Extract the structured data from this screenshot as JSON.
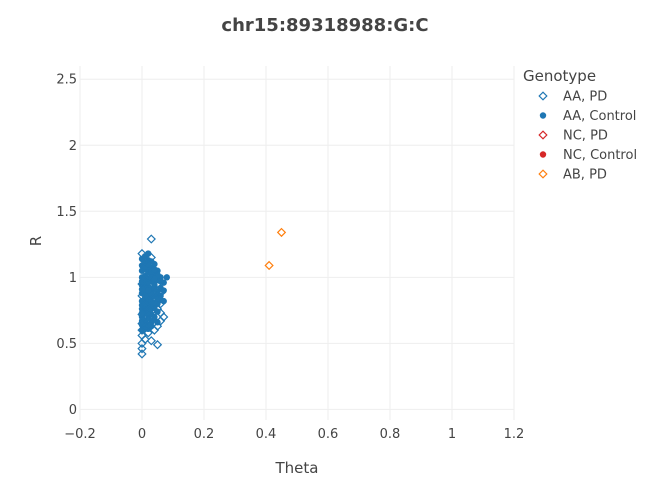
{
  "chart_data": {
    "type": "scatter",
    "title": "chr15:89318988:G:C",
    "xlabel": "Theta",
    "ylabel": "R",
    "xlim": [
      -0.2,
      1.2
    ],
    "ylim": [
      -0.08,
      2.6
    ],
    "xticks": [
      -0.2,
      0,
      0.2,
      0.4,
      0.6,
      0.8,
      1,
      1.2
    ],
    "xtick_labels": [
      "−0.2",
      "0",
      "0.2",
      "0.4",
      "0.6",
      "0.8",
      "1",
      "1.2"
    ],
    "yticks": [
      0,
      0.5,
      1,
      1.5,
      2,
      2.5
    ],
    "ytick_labels": [
      "0",
      "0.5",
      "1",
      "1.5",
      "2",
      "2.5"
    ],
    "grid": true,
    "legend": {
      "title": "Genotype",
      "position": "top-right"
    },
    "series": [
      {
        "name": "AA, PD",
        "marker": "diamond-open",
        "color": "#1f77b4",
        "points": [
          [
            0.03,
            1.29
          ],
          [
            0.0,
            0.42
          ],
          [
            0.0,
            0.46
          ],
          [
            0.0,
            0.5
          ],
          [
            0.01,
            0.53
          ],
          [
            0.0,
            0.56
          ],
          [
            0.02,
            0.58
          ],
          [
            0.05,
            0.49
          ],
          [
            0.03,
            0.52
          ],
          [
            0.0,
            0.6
          ],
          [
            0.01,
            0.62
          ],
          [
            0.04,
            0.6
          ],
          [
            0.05,
            0.63
          ],
          [
            0.06,
            0.67
          ],
          [
            0.07,
            0.7
          ],
          [
            0.06,
            0.73
          ],
          [
            0.0,
            0.65
          ],
          [
            0.02,
            0.68
          ],
          [
            0.03,
            0.7
          ],
          [
            0.05,
            0.76
          ],
          [
            0.06,
            0.8
          ],
          [
            0.0,
            0.72
          ],
          [
            0.04,
            0.85
          ],
          [
            0.05,
            0.9
          ],
          [
            0.0,
            0.95
          ],
          [
            0.02,
            1.0
          ],
          [
            0.04,
            1.05
          ],
          [
            0.01,
            1.12
          ],
          [
            0.03,
            1.15
          ],
          [
            0.0,
            1.18
          ],
          [
            0.05,
            0.95
          ],
          [
            0.06,
            0.88
          ],
          [
            0.01,
            0.78
          ],
          [
            0.02,
            0.82
          ],
          [
            0.0,
            0.86
          ],
          [
            0.04,
            0.66
          ],
          [
            0.01,
            0.69
          ],
          [
            0.03,
            0.74
          ]
        ]
      },
      {
        "name": "AA, Control",
        "marker": "circle",
        "color": "#1f77b4",
        "points": [
          [
            0.0,
            0.6
          ],
          [
            0.01,
            0.62
          ],
          [
            0.02,
            0.61
          ],
          [
            0.0,
            0.64
          ],
          [
            0.03,
            0.66
          ],
          [
            0.01,
            0.67
          ],
          [
            0.02,
            0.69
          ],
          [
            0.04,
            0.7
          ],
          [
            0.0,
            0.7
          ],
          [
            0.03,
            0.72
          ],
          [
            0.01,
            0.73
          ],
          [
            0.05,
            0.74
          ],
          [
            0.02,
            0.75
          ],
          [
            0.0,
            0.76
          ],
          [
            0.04,
            0.77
          ],
          [
            0.01,
            0.78
          ],
          [
            0.03,
            0.79
          ],
          [
            0.05,
            0.8
          ],
          [
            0.02,
            0.81
          ],
          [
            0.0,
            0.82
          ],
          [
            0.06,
            0.83
          ],
          [
            0.01,
            0.84
          ],
          [
            0.03,
            0.85
          ],
          [
            0.04,
            0.86
          ],
          [
            0.02,
            0.87
          ],
          [
            0.0,
            0.88
          ],
          [
            0.05,
            0.89
          ],
          [
            0.01,
            0.9
          ],
          [
            0.03,
            0.91
          ],
          [
            0.06,
            0.92
          ],
          [
            0.02,
            0.93
          ],
          [
            0.0,
            0.94
          ],
          [
            0.04,
            0.95
          ],
          [
            0.01,
            0.96
          ],
          [
            0.03,
            0.97
          ],
          [
            0.05,
            0.98
          ],
          [
            0.02,
            0.99
          ],
          [
            0.0,
            1.0
          ],
          [
            0.06,
            1.0
          ],
          [
            0.01,
            1.01
          ],
          [
            0.03,
            1.02
          ],
          [
            0.04,
            1.03
          ],
          [
            0.02,
            1.04
          ],
          [
            0.0,
            1.05
          ],
          [
            0.05,
            1.05
          ],
          [
            0.01,
            1.06
          ],
          [
            0.03,
            1.07
          ],
          [
            0.02,
            1.08
          ],
          [
            0.0,
            1.09
          ],
          [
            0.04,
            1.1
          ],
          [
            0.01,
            1.11
          ],
          [
            0.03,
            1.12
          ],
          [
            0.02,
            1.13
          ],
          [
            0.0,
            1.14
          ],
          [
            0.01,
            1.16
          ],
          [
            0.02,
            1.18
          ],
          [
            0.08,
            1.0
          ],
          [
            0.07,
            0.96
          ],
          [
            0.07,
            0.9
          ],
          [
            0.06,
            0.86
          ],
          [
            0.07,
            0.82
          ],
          [
            0.0,
            0.73
          ],
          [
            0.02,
            0.71
          ],
          [
            0.04,
            0.68
          ],
          [
            0.01,
            0.65
          ],
          [
            0.03,
            0.63
          ],
          [
            0.05,
            0.66
          ],
          [
            0.0,
            0.79
          ],
          [
            0.04,
            0.81
          ],
          [
            0.02,
            0.84
          ],
          [
            0.05,
            0.87
          ],
          [
            0.01,
            0.92
          ],
          [
            0.04,
            0.94
          ],
          [
            0.0,
            0.97
          ],
          [
            0.02,
            0.96
          ],
          [
            0.05,
            1.02
          ],
          [
            0.03,
            1.04
          ],
          [
            0.01,
            1.08
          ],
          [
            0.04,
            1.06
          ],
          [
            0.02,
            1.1
          ],
          [
            0.06,
            0.97
          ],
          [
            0.03,
            0.88
          ],
          [
            0.01,
            0.86
          ],
          [
            0.04,
            0.91
          ],
          [
            0.02,
            0.77
          ],
          [
            0.03,
            0.82
          ],
          [
            0.0,
            0.91
          ],
          [
            0.01,
            0.99
          ],
          [
            0.03,
            1.0
          ],
          [
            0.02,
            0.9
          ],
          [
            0.04,
            0.99
          ],
          [
            0.01,
            0.8
          ],
          [
            0.03,
            0.76
          ],
          [
            0.05,
            0.84
          ],
          [
            0.02,
            0.64
          ],
          [
            0.0,
            0.67
          ]
        ]
      },
      {
        "name": "NC, PD",
        "marker": "diamond-open",
        "color": "#d62728",
        "points": []
      },
      {
        "name": "NC, Control",
        "marker": "circle",
        "color": "#d62728",
        "points": []
      },
      {
        "name": "AB, PD",
        "marker": "diamond-open",
        "color": "#ff7f0e",
        "points": [
          [
            0.45,
            1.34
          ],
          [
            0.41,
            1.09
          ]
        ]
      }
    ]
  }
}
